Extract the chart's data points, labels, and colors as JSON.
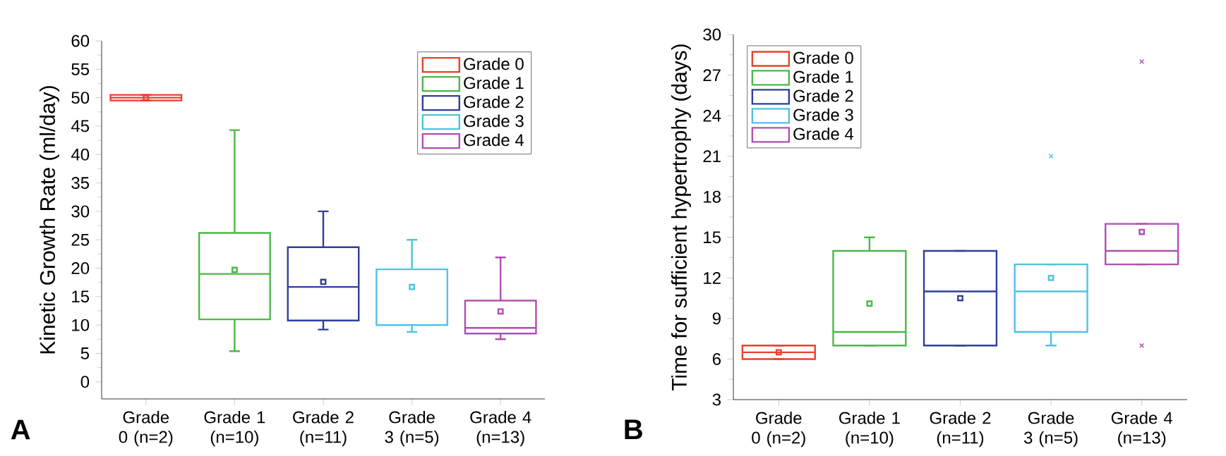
{
  "chart_data": [
    {
      "type": "box",
      "ylabel": "Kinetic Growth Rate (ml/day)",
      "categories": [
        "Grade 0 (n=2)",
        "Grade 1 (n=10)",
        "Grade 2 (n=11)",
        "Grade 3 (n=5)",
        "Grade 4 (n=13)"
      ],
      "series": [
        {
          "name": "Grade 0",
          "color": "#e8412c",
          "boxes": [
            {
              "low": 49.5,
              "q1": 49.5,
              "median": 50,
              "q3": 50.5,
              "high": 50.5,
              "mean": 50
            },
            null,
            null,
            null,
            null
          ]
        },
        {
          "name": "Grade 1",
          "color": "#4cb848",
          "boxes": [
            null,
            {
              "low": 5.4,
              "q1": 11,
              "median": 19,
              "q3": 26.2,
              "high": 44.3,
              "mean": 19.7
            },
            null,
            null,
            null
          ]
        },
        {
          "name": "Grade 2",
          "color": "#2e3f9b",
          "boxes": [
            null,
            null,
            {
              "low": 9.2,
              "q1": 10.8,
              "median": 16.7,
              "q3": 23.7,
              "high": 30,
              "mean": 17.6
            },
            null,
            null
          ]
        },
        {
          "name": "Grade 3",
          "color": "#4fc3df",
          "boxes": [
            null,
            null,
            null,
            {
              "low": 8.8,
              "q1": 10,
              "median": 10,
              "q3": 19.8,
              "high": 25,
              "mean": 16.7
            },
            null
          ]
        },
        {
          "name": "Grade 4",
          "color": "#b04fb0",
          "boxes": [
            null,
            null,
            null,
            null,
            {
              "low": 7.5,
              "q1": 8.5,
              "median": 9.5,
              "q3": 14.3,
              "high": 21.9,
              "mean": 12.4
            }
          ]
        }
      ],
      "ylim": [
        -3,
        60
      ],
      "yticks": [
        0,
        5,
        10,
        15,
        20,
        25,
        30,
        35,
        40,
        45,
        50,
        55,
        60
      ],
      "legend": "top right",
      "annotations": [
        "A"
      ]
    },
    {
      "type": "box",
      "ylabel": "Time for sufficient hypertrophy (days)",
      "categories": [
        "Grade 0 (n=2)",
        "Grade 1 (n=10)",
        "Grade 2 (n=11)",
        "Grade 3 (n=5)",
        "Grade 4 (n=13)"
      ],
      "series": [
        {
          "name": "Grade 0",
          "color": "#e8412c",
          "boxes": [
            {
              "low": 6,
              "q1": 6,
              "median": 6.5,
              "q3": 7,
              "high": 7,
              "mean": 6.5
            },
            null,
            null,
            null,
            null
          ]
        },
        {
          "name": "Grade 1",
          "color": "#4cb848",
          "boxes": [
            null,
            {
              "low": 7,
              "q1": 7,
              "median": 8,
              "q3": 14,
              "high": 15,
              "mean": 10.1
            },
            null,
            null,
            null
          ]
        },
        {
          "name": "Grade 2",
          "color": "#2e3f9b",
          "boxes": [
            null,
            null,
            {
              "low": 7,
              "q1": 7,
              "median": 11,
              "q3": 14,
              "high": 14,
              "mean": 10.5
            },
            null,
            null
          ]
        },
        {
          "name": "Grade 3",
          "color": "#4fc3df",
          "boxes": [
            null,
            null,
            null,
            {
              "low": 7,
              "q1": 8,
              "median": 11,
              "q3": 13,
              "high": 13,
              "mean": 12,
              "outliers": [
                21
              ]
            },
            null
          ]
        },
        {
          "name": "Grade 4",
          "color": "#b04fb0",
          "boxes": [
            null,
            null,
            null,
            null,
            {
              "low": 13,
              "q1": 13,
              "median": 14,
              "q3": 16,
              "high": 16,
              "mean": 15.4,
              "outliers": [
                28,
                7
              ]
            }
          ]
        }
      ],
      "ylim": [
        3,
        30
      ],
      "yticks": [
        3,
        6,
        9,
        12,
        15,
        18,
        21,
        24,
        27,
        30
      ],
      "legend": "top left",
      "annotations": [
        "B"
      ]
    }
  ]
}
